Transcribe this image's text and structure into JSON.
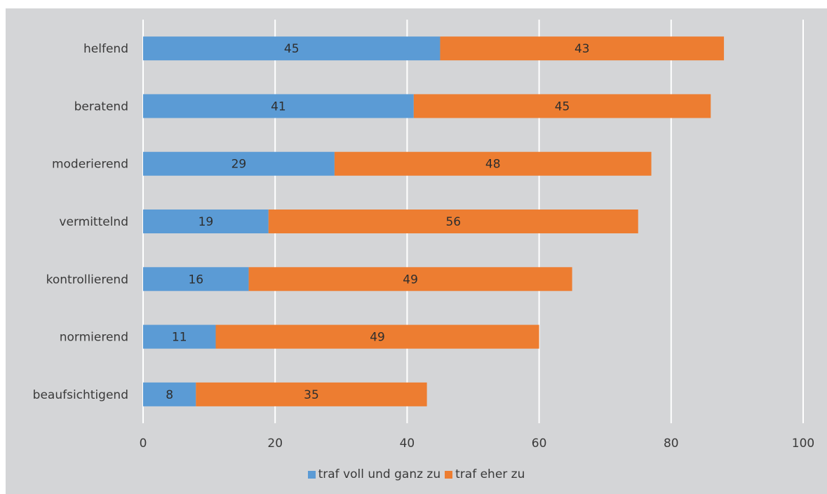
{
  "chart_data": {
    "type": "bar",
    "orientation": "horizontal",
    "stacked": true,
    "categories": [
      "helfend",
      "beratend",
      "moderierend",
      "vermittelnd",
      "kontrollierend",
      "normierend",
      "beaufsichtigend"
    ],
    "series": [
      {
        "name": "traf voll und ganz zu",
        "color": "#5b9bd5",
        "values": [
          45,
          41,
          29,
          19,
          16,
          11,
          8
        ]
      },
      {
        "name": "traf eher zu",
        "color": "#ed7d31",
        "values": [
          43,
          45,
          48,
          56,
          49,
          49,
          35
        ]
      }
    ],
    "xlim": [
      0,
      100
    ],
    "xticks": [
      0,
      20,
      40,
      60,
      80,
      100
    ],
    "grid": true,
    "legend_position": "bottom",
    "title": "",
    "xlabel": "",
    "ylabel": ""
  }
}
